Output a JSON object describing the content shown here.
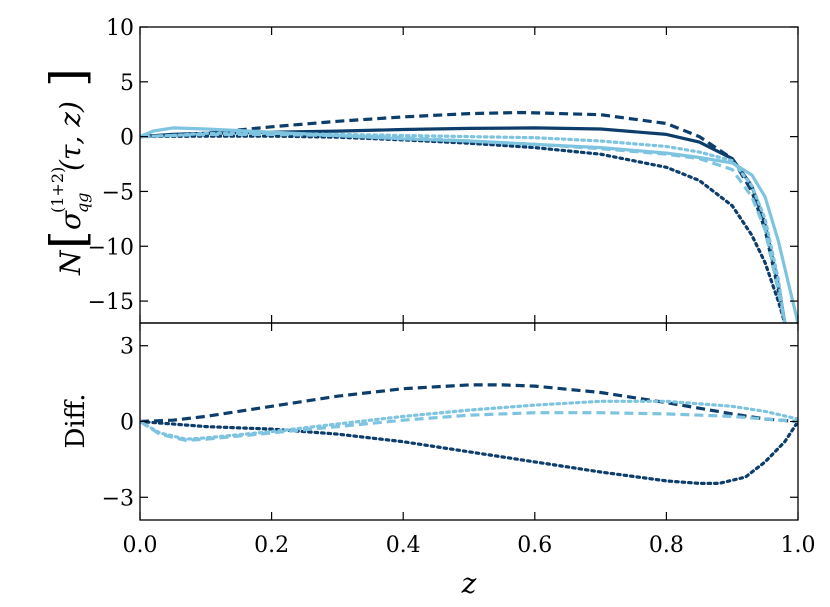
{
  "chart_data": [
    {
      "type": "line",
      "panel": "top",
      "ylabel_parts": {
        "prefix": "N",
        "sigma": "σ",
        "sup": "(1+2)",
        "sub": "qg",
        "args": "(τ, z)"
      },
      "xlim": [
        0.0,
        1.0
      ],
      "ylim": [
        -17,
        10
      ],
      "yticks": [
        10,
        5,
        0,
        -5,
        -10,
        -15
      ],
      "ytick_labels": [
        "10",
        "5",
        "0",
        "−5",
        "−10",
        "−15"
      ],
      "series": [
        {
          "color": "#0d3d6b",
          "style": "solid",
          "x": [
            0.0,
            0.05,
            0.1,
            0.2,
            0.3,
            0.4,
            0.5,
            0.6,
            0.7,
            0.8,
            0.85,
            0.9,
            0.93,
            0.95,
            0.97,
            0.98
          ],
          "y": [
            0.0,
            0.2,
            0.3,
            0.4,
            0.5,
            0.65,
            0.75,
            0.8,
            0.7,
            0.2,
            -0.5,
            -2.0,
            -4.5,
            -8.0,
            -13.5,
            -17
          ]
        },
        {
          "color": "#0d3d6b",
          "style": "dashed",
          "x": [
            0.0,
            0.1,
            0.2,
            0.3,
            0.4,
            0.5,
            0.58,
            0.7,
            0.8,
            0.85,
            0.9,
            0.93,
            0.95,
            0.97,
            0.98
          ],
          "y": [
            0.0,
            0.3,
            0.9,
            1.4,
            1.8,
            2.1,
            2.2,
            2.0,
            1.2,
            0.0,
            -2.0,
            -5.0,
            -8.5,
            -14.0,
            -17
          ]
        },
        {
          "color": "#0d3d6b",
          "style": "dotted",
          "x": [
            0.0,
            0.1,
            0.2,
            0.3,
            0.4,
            0.5,
            0.6,
            0.7,
            0.8,
            0.85,
            0.9,
            0.93,
            0.95,
            0.97,
            0.98
          ],
          "y": [
            0.0,
            0.05,
            0.05,
            -0.05,
            -0.3,
            -0.6,
            -1.0,
            -1.6,
            -2.8,
            -4.0,
            -6.3,
            -9.0,
            -11.5,
            -15.0,
            -17
          ]
        },
        {
          "color": "#7ec4e0",
          "style": "solid",
          "x": [
            0.0,
            0.02,
            0.05,
            0.1,
            0.2,
            0.3,
            0.4,
            0.5,
            0.6,
            0.7,
            0.8,
            0.85,
            0.9,
            0.93,
            0.95,
            0.97,
            0.99,
            1.0
          ],
          "y": [
            0.0,
            0.5,
            0.8,
            0.7,
            0.4,
            0.1,
            -0.2,
            -0.4,
            -0.7,
            -1.0,
            -1.5,
            -1.9,
            -2.4,
            -3.5,
            -5.5,
            -9.5,
            -14.5,
            -17
          ]
        },
        {
          "color": "#7ec4e0",
          "style": "dashed",
          "x": [
            0.0,
            0.05,
            0.1,
            0.2,
            0.3,
            0.4,
            0.5,
            0.6,
            0.7,
            0.8,
            0.85,
            0.9,
            0.93,
            0.95,
            0.97,
            0.98
          ],
          "y": [
            0.0,
            0.1,
            0.2,
            0.2,
            0.1,
            -0.1,
            -0.4,
            -0.7,
            -1.1,
            -1.6,
            -2.0,
            -3.0,
            -5.5,
            -8.5,
            -14.0,
            -17
          ]
        },
        {
          "color": "#7ec4e0",
          "style": "dotted",
          "x": [
            0.0,
            0.05,
            0.1,
            0.2,
            0.3,
            0.4,
            0.5,
            0.6,
            0.7,
            0.8,
            0.85,
            0.9,
            0.93,
            0.95,
            0.97,
            0.98
          ],
          "y": [
            0.0,
            0.1,
            0.3,
            0.3,
            0.2,
            0.1,
            0.0,
            -0.1,
            -0.4,
            -0.9,
            -1.4,
            -2.2,
            -4.5,
            -7.5,
            -13.0,
            -17
          ]
        }
      ]
    },
    {
      "type": "line",
      "panel": "bottom",
      "xlabel": "z",
      "ylabel": "Diff.",
      "xlim": [
        0.0,
        1.0
      ],
      "ylim": [
        -3.9,
        3.9
      ],
      "xticks": [
        0.0,
        0.2,
        0.4,
        0.6,
        0.8,
        1.0
      ],
      "xtick_labels": [
        "0.0",
        "0.2",
        "0.4",
        "0.6",
        "0.8",
        "1.0"
      ],
      "yticks": [
        3,
        0,
        -3
      ],
      "ytick_labels": [
        "3",
        "0",
        "−3"
      ],
      "series": [
        {
          "color": "#0d3d6b",
          "style": "dashed",
          "x": [
            0.0,
            0.05,
            0.1,
            0.2,
            0.3,
            0.4,
            0.5,
            0.55,
            0.6,
            0.7,
            0.8,
            0.9,
            0.95,
            1.0
          ],
          "y": [
            0.0,
            0.05,
            0.2,
            0.6,
            1.0,
            1.3,
            1.45,
            1.45,
            1.4,
            1.15,
            0.75,
            0.3,
            0.1,
            0.0
          ]
        },
        {
          "color": "#0d3d6b",
          "style": "dotted",
          "x": [
            0.0,
            0.05,
            0.1,
            0.2,
            0.3,
            0.4,
            0.5,
            0.6,
            0.7,
            0.8,
            0.85,
            0.88,
            0.92,
            0.95,
            0.98,
            1.0
          ],
          "y": [
            0.0,
            -0.1,
            -0.2,
            -0.3,
            -0.5,
            -0.8,
            -1.2,
            -1.6,
            -2.0,
            -2.35,
            -2.45,
            -2.45,
            -2.2,
            -1.6,
            -0.8,
            0.0
          ]
        },
        {
          "color": "#7ec4e0",
          "style": "dashed",
          "x": [
            0.0,
            0.03,
            0.07,
            0.1,
            0.2,
            0.3,
            0.4,
            0.5,
            0.6,
            0.7,
            0.8,
            0.9,
            0.95,
            1.0
          ],
          "y": [
            0.0,
            -0.5,
            -0.75,
            -0.7,
            -0.45,
            -0.2,
            0.05,
            0.25,
            0.35,
            0.35,
            0.3,
            0.2,
            0.1,
            0.0
          ]
        },
        {
          "color": "#7ec4e0",
          "style": "dotted",
          "x": [
            0.0,
            0.03,
            0.07,
            0.1,
            0.2,
            0.3,
            0.4,
            0.5,
            0.6,
            0.7,
            0.8,
            0.9,
            0.95,
            1.0
          ],
          "y": [
            0.0,
            -0.45,
            -0.7,
            -0.65,
            -0.4,
            -0.1,
            0.2,
            0.45,
            0.65,
            0.8,
            0.8,
            0.6,
            0.4,
            0.1
          ]
        }
      ]
    }
  ]
}
